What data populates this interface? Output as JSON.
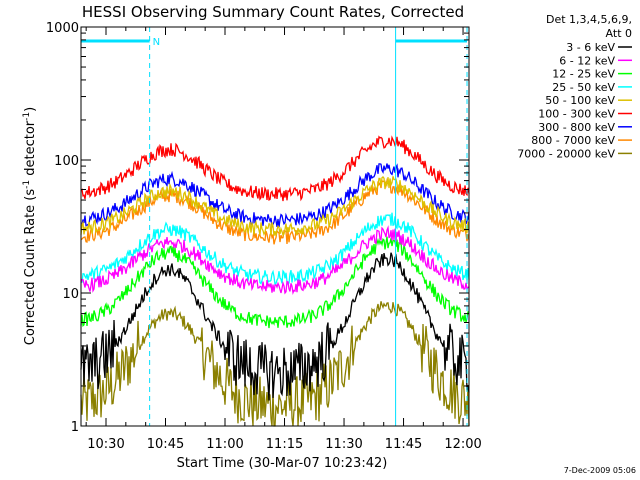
{
  "chart_data": {
    "type": "line",
    "title": "HESSI Observing Summary Count Rates, Corrected",
    "xlabel": "Start Time (30-Mar-07 10:23:42)",
    "ylabel": "Corrected Count Rate (s^-1 detector^-1)",
    "ylabel_main": "Corrected Count Rate (s",
    "ylabel_mid": " detector",
    "ylabel_end": ")",
    "ylabel_sup": "-1",
    "yscale": "log",
    "ylim": [
      1,
      1000
    ],
    "xlim": [
      "10:23:42",
      "12:01:30"
    ],
    "xticks": [
      "10:30",
      "10:45",
      "11:00",
      "11:15",
      "11:30",
      "11:45",
      "12:00"
    ],
    "yticks": [
      "1",
      "10",
      "100",
      "1000"
    ],
    "legend_header": [
      "Det 1,3,4,5,6,9,",
      "Att 0"
    ],
    "legend_position": "right",
    "timestamp": "7-Dec-2009 05:06",
    "annotations": {
      "night_intervals": [
        [
          "10:23:42",
          "10:41:00"
        ],
        [
          "11:43:00",
          "12:01:00"
        ]
      ],
      "saa_label": "N",
      "dashed_times": [
        "10:41:00",
        "12:01:00"
      ],
      "solid_times": [
        "10:23:42",
        "11:43:00"
      ]
    },
    "series": [
      {
        "name": "3 - 6 keV",
        "color": "#000000",
        "base": 2.5,
        "peaks": [
          15,
          18
        ]
      },
      {
        "name": "6 - 12 keV",
        "color": "#ff00ff",
        "base": 11,
        "peaks": [
          24,
          28
        ]
      },
      {
        "name": "12 - 25 keV",
        "color": "#00ff00",
        "base": 6,
        "peaks": [
          20,
          24
        ]
      },
      {
        "name": "25 - 50 keV",
        "color": "#00ffff",
        "base": 13,
        "peaks": [
          30,
          36
        ]
      },
      {
        "name": "50 - 100 keV",
        "color": "#ddc000",
        "base": 30,
        "peaks": [
          58,
          68
        ]
      },
      {
        "name": "100 - 300 keV",
        "color": "#ff0000",
        "base": 55,
        "peaks": [
          120,
          140
        ]
      },
      {
        "name": "300 - 800 keV",
        "color": "#0000ff",
        "base": 35,
        "peaks": [
          72,
          86
        ]
      },
      {
        "name": "800 - 7000 keV",
        "color": "#ff8800",
        "base": 26,
        "peaks": [
          54,
          64
        ]
      },
      {
        "name": "7000 - 20000 keV",
        "color": "#8b8000",
        "base": 1.4,
        "peaks": [
          7,
          8
        ]
      }
    ]
  }
}
